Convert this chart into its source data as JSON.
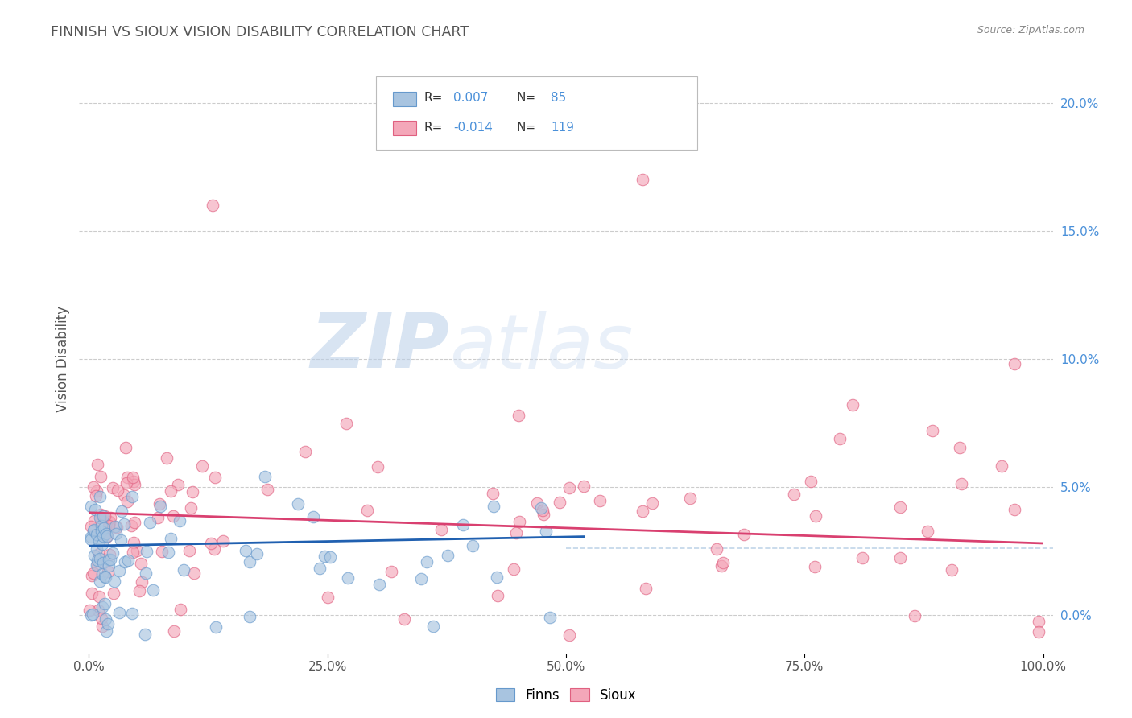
{
  "title": "FINNISH VS SIOUX VISION DISABILITY CORRELATION CHART",
  "source_text": "Source: ZipAtlas.com",
  "ylabel": "Vision Disability",
  "xlim": [
    -0.01,
    1.01
  ],
  "ylim": [
    -0.015,
    0.215
  ],
  "xticks": [
    0.0,
    0.25,
    0.5,
    0.75,
    1.0
  ],
  "xtick_labels": [
    "0.0%",
    "25.0%",
    "50.0%",
    "75.0%",
    "100.0%"
  ],
  "yticks": [
    0.0,
    0.05,
    0.1,
    0.15,
    0.2
  ],
  "ytick_labels": [
    "0.0%",
    "5.0%",
    "10.0%",
    "15.0%",
    "20.0%"
  ],
  "finns_color": "#a8c4e0",
  "sioux_color": "#f4a7b9",
  "finns_line_color": "#2060b0",
  "sioux_line_color": "#d94070",
  "finns_edge_color": "#6699cc",
  "sioux_edge_color": "#e06080",
  "watermark_zip": "ZIP",
  "watermark_atlas": "atlas",
  "watermark_color_zip": "#b8cee8",
  "watermark_color_atlas": "#c8daf0",
  "background_color": "#ffffff",
  "grid_color": "#cccccc",
  "title_color": "#555555",
  "axis_label_color": "#4a90d9",
  "legend_r1": "R=",
  "legend_v1": "0.007",
  "legend_n1": "N=",
  "legend_nv1": "85",
  "legend_r2": "R=",
  "legend_v2": "-0.014",
  "legend_n2": "N=",
  "legend_nv2": "119"
}
